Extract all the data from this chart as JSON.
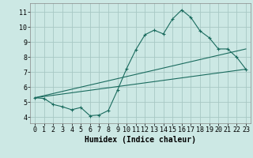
{
  "xlabel": "Humidex (Indice chaleur)",
  "bg_color": "#cce8e4",
  "grid_color": "#a8c8c4",
  "line_color": "#1a6b5e",
  "xlim": [
    -0.5,
    23.5
  ],
  "ylim": [
    3.6,
    11.6
  ],
  "xticks": [
    0,
    1,
    2,
    3,
    4,
    5,
    6,
    7,
    8,
    9,
    10,
    11,
    12,
    13,
    14,
    15,
    16,
    17,
    18,
    19,
    20,
    21,
    22,
    23
  ],
  "yticks": [
    4,
    5,
    6,
    7,
    8,
    9,
    10,
    11
  ],
  "line1_x": [
    0,
    1,
    2,
    3,
    4,
    5,
    6,
    7,
    8,
    9,
    10,
    11,
    12,
    13,
    14,
    15,
    16,
    17,
    18,
    19,
    20,
    21,
    22,
    23
  ],
  "line1_y": [
    5.3,
    5.25,
    4.85,
    4.7,
    4.5,
    4.65,
    4.1,
    4.15,
    4.45,
    5.8,
    7.25,
    8.5,
    9.5,
    9.8,
    9.55,
    10.55,
    11.15,
    10.65,
    9.75,
    9.3,
    8.55,
    8.55,
    8.0,
    7.2
  ],
  "line2_x": [
    0,
    23
  ],
  "line2_y": [
    5.3,
    7.2
  ],
  "line3_x": [
    0,
    23
  ],
  "line3_y": [
    5.3,
    8.55
  ],
  "xlabel_fontsize": 7,
  "tick_fontsize": 6
}
